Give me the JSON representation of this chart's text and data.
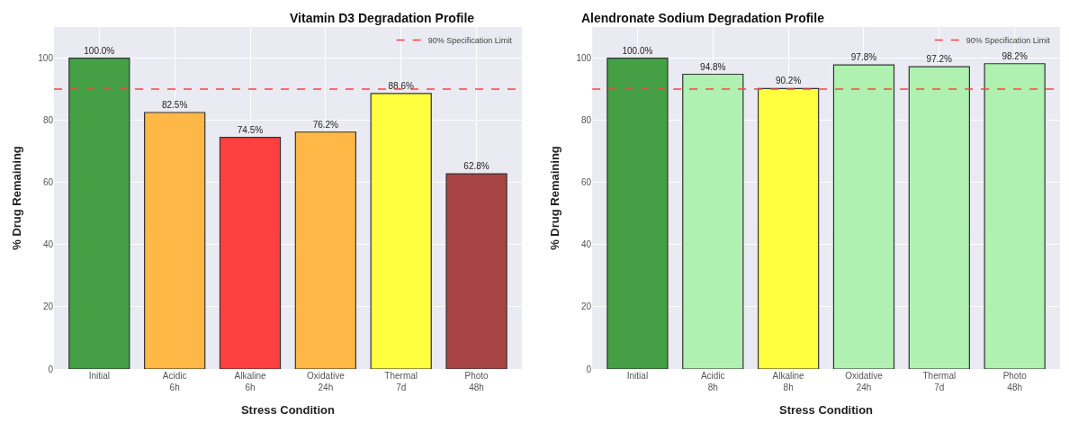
{
  "chart_data": [
    {
      "type": "bar",
      "title": "Vitamin D3 Degradation Profile",
      "xlabel": "Stress Condition",
      "ylabel": "% Drug Remaining",
      "categories": [
        "Initial",
        "Acidic\n6h",
        "Alkaline\n6h",
        "Oxidative\n24h",
        "Thermal\n7d",
        "Photo\n48h"
      ],
      "values": [
        100.0,
        82.5,
        74.5,
        76.2,
        88.6,
        62.8
      ],
      "colors": [
        "#45a045",
        "#ffb845",
        "#ff4040",
        "#ffb845",
        "#ffff40",
        "#a84444"
      ],
      "value_labels": [
        "100.0%",
        "82.5%",
        "74.5%",
        "76.2%",
        "88.6%",
        "62.8%"
      ],
      "ylim": [
        0,
        110
      ],
      "yticks": [
        0,
        20,
        40,
        60,
        80,
        100
      ],
      "grid": true,
      "legend": "top right",
      "ref_lines": [
        {
          "axis": "y",
          "value": 90,
          "label": "90% Specification Limit",
          "color": "#ff4040",
          "line_style": "dashed"
        }
      ]
    },
    {
      "type": "bar",
      "title": "Alendronate Sodium Degradation Profile",
      "xlabel": "Stress Condition",
      "ylabel": "% Drug Remaining",
      "categories": [
        "Initial",
        "Acidic\n8h",
        "Alkaline\n8h",
        "Oxidative\n24h",
        "Thermal\n7d",
        "Photo\n48h"
      ],
      "values": [
        100.0,
        94.8,
        90.2,
        97.8,
        97.2,
        98.2
      ],
      "colors": [
        "#45a045",
        "#b0f0b0",
        "#ffff40",
        "#b0f0b0",
        "#b0f0b0",
        "#b0f0b0"
      ],
      "value_labels": [
        "100.0%",
        "94.8%",
        "90.2%",
        "97.8%",
        "97.2%",
        "98.2%"
      ],
      "ylim": [
        0,
        110
      ],
      "yticks": [
        0,
        20,
        40,
        60,
        80,
        100
      ],
      "grid": true,
      "legend": "top right",
      "ref_lines": [
        {
          "axis": "y",
          "value": 90,
          "label": "90% Specification Limit",
          "color": "#ff4040",
          "line_style": "dashed"
        }
      ]
    }
  ]
}
